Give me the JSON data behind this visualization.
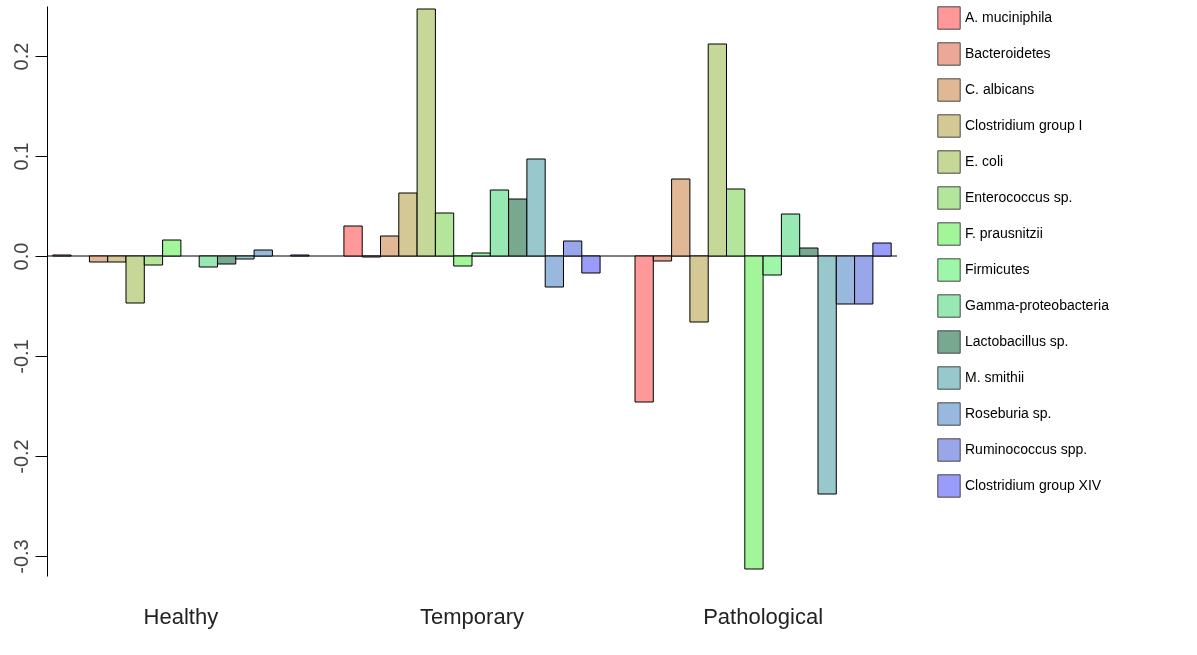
{
  "chart_data": {
    "type": "bar",
    "categories": [
      "Healthy",
      "Temporary",
      "Pathological"
    ],
    "ylim": [
      -0.32,
      0.25
    ],
    "yticks": [
      {
        "value": -0.3,
        "label": "-0.3"
      },
      {
        "value": -0.2,
        "label": "-0.2"
      },
      {
        "value": -0.1,
        "label": "-0.1"
      },
      {
        "value": 0,
        "label": "0.0"
      },
      {
        "value": 0.1,
        "label": "0.1"
      },
      {
        "value": 0.2,
        "label": "0.2"
      }
    ],
    "grid": false,
    "legend": "right",
    "ref_lines": [
      {
        "axis": "y",
        "value": 0,
        "color": "#000000"
      }
    ],
    "series": [
      {
        "name": "A. muciniphila",
        "color": "#ff9999",
        "values": [
          0.001,
          0.03,
          -0.146
        ]
      },
      {
        "name": "Bacteroidetes",
        "color": "#eba797",
        "values": [
          null,
          -0.001,
          -0.005
        ]
      },
      {
        "name": "C. albicans",
        "color": "#e0b896",
        "values": [
          -0.006,
          0.02,
          0.077
        ]
      },
      {
        "name": "Clostridium group I",
        "color": "#d4c994",
        "values": [
          -0.006,
          0.063,
          -0.066
        ]
      },
      {
        "name": "E. coli",
        "color": "#c6d898",
        "values": [
          -0.047,
          0.247,
          0.212
        ]
      },
      {
        "name": "Enterococcus sp.",
        "color": "#b3e59a",
        "values": [
          -0.009,
          0.043,
          0.067
        ]
      },
      {
        "name": "F. prausnitzii",
        "color": "#a3f59a",
        "values": [
          0.016,
          -0.01,
          -0.313
        ]
      },
      {
        "name": "Firmicutes",
        "color": "#9ef7a8",
        "values": [
          null,
          0.003,
          -0.019
        ]
      },
      {
        "name": "Gamma-proteobacteria",
        "color": "#98e8b4",
        "values": [
          -0.011,
          0.066,
          0.042
        ]
      },
      {
        "name": "Lactobacillus sp.",
        "color": "#78a890",
        "values": [
          -0.008,
          0.057,
          0.008
        ]
      },
      {
        "name": "M. smithii",
        "color": "#99c8cc",
        "values": [
          -0.003,
          0.097,
          -0.238
        ]
      },
      {
        "name": "Roseburia sp.",
        "color": "#99b8dd",
        "values": [
          0.006,
          -0.031,
          -0.048
        ]
      },
      {
        "name": "Ruminococcus spp.",
        "color": "#9aa6ea",
        "values": [
          null,
          0.015,
          -0.048
        ]
      },
      {
        "name": "Clostridium group XIV",
        "color": "#9a9cfb",
        "values": [
          0.001,
          -0.017,
          0.013
        ]
      }
    ]
  }
}
